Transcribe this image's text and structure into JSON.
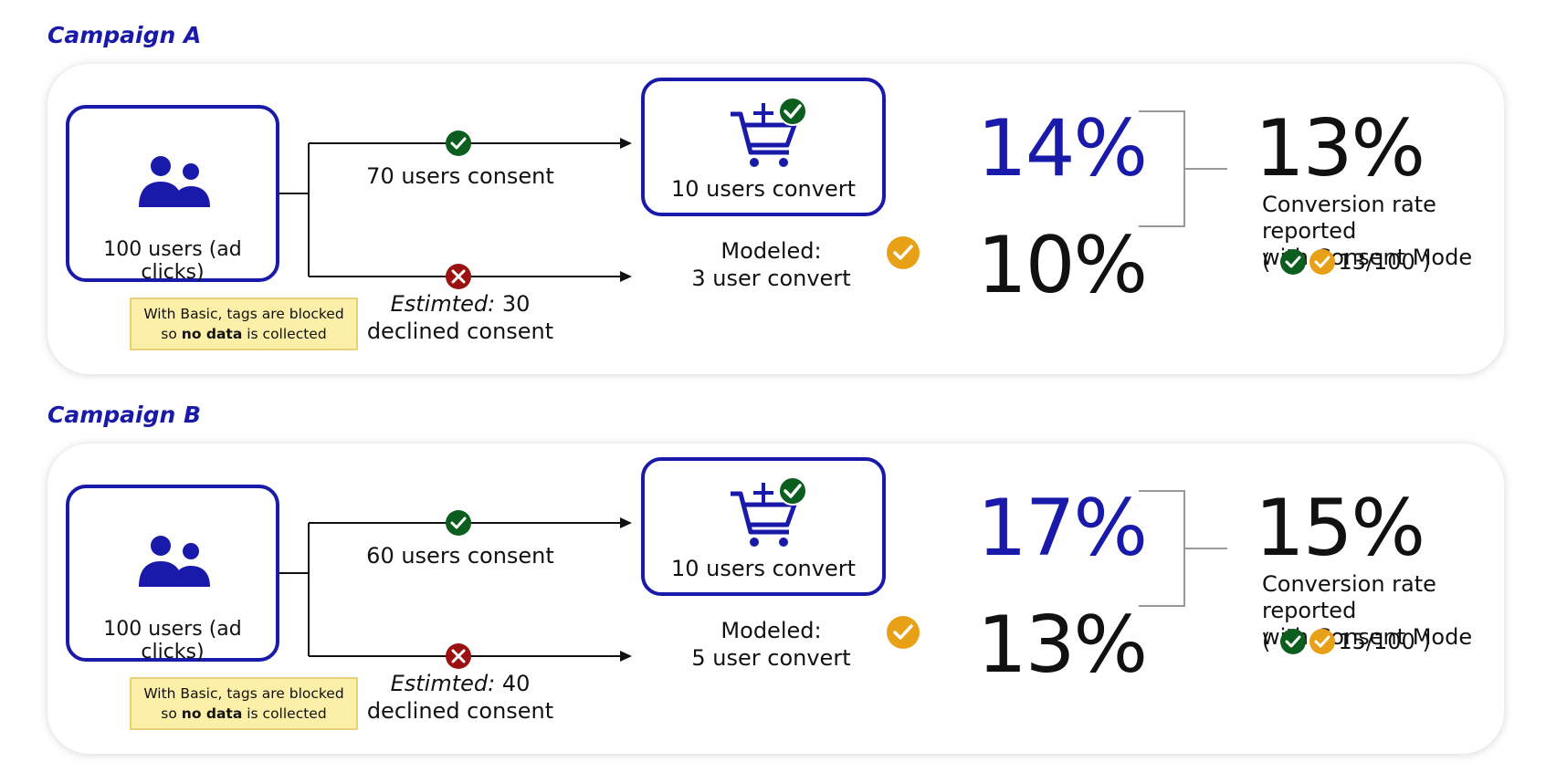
{
  "colors": {
    "accent": "#1a1aaa",
    "consent_check": "#0b5e1e",
    "declined": "#9b1111",
    "modeled": "#e8a016",
    "note_bg": "#fcf0a8"
  },
  "icons": [
    "users-icon",
    "check-icon",
    "cross-icon",
    "cart-icon",
    "arrow-icon"
  ],
  "campaigns": [
    {
      "title": "Campaign A",
      "users_label": "100 users (ad clicks)",
      "note": {
        "prefix": "With Basic, tags are blocked",
        "so": "so ",
        "bold": "no data",
        "suffix": " is collected"
      },
      "consent_label": "70 users consent",
      "declined_italic": "Estimted:",
      "declined_count": " 30",
      "declined_label": "declined consent",
      "convert_label": "10 users convert",
      "modeled_line1": "Modeled:",
      "modeled_line2": "3 user convert",
      "observed_pct": "14%",
      "modeled_pct": "10%",
      "reported_pct": "13%",
      "caption_line1": "Conversion rate reported",
      "caption_line2": "with Consent Mode",
      "ratio_open": "(",
      "ratio": "13/100 )"
    },
    {
      "title": "Campaign B",
      "users_label": "100 users (ad clicks)",
      "note": {
        "prefix": "With Basic, tags are blocked",
        "so": "so ",
        "bold": "no data",
        "suffix": " is collected"
      },
      "consent_label": "60 users consent",
      "declined_italic": "Estimted:",
      "declined_count": " 40",
      "declined_label": "declined consent",
      "convert_label": "10 users convert",
      "modeled_line1": "Modeled:",
      "modeled_line2": "5 user convert",
      "observed_pct": "17%",
      "modeled_pct": "13%",
      "reported_pct": "15%",
      "caption_line1": "Conversion rate reported",
      "caption_line2": "with Consent Mode",
      "ratio_open": "(",
      "ratio": "15/100 )"
    }
  ]
}
